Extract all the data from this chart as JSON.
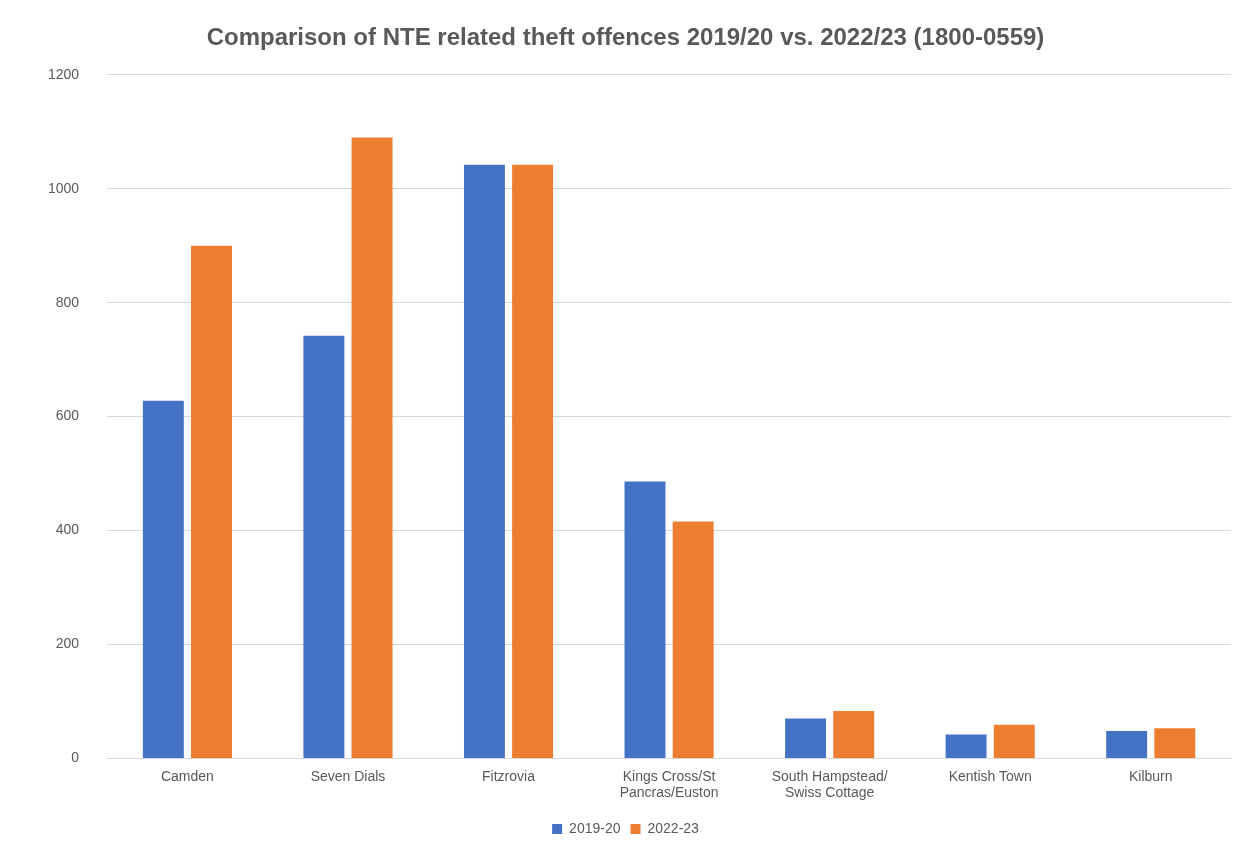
{
  "chart_data": {
    "type": "bar",
    "title": "Comparison of NTE related theft offences 2019/20 vs. 2022/23 (1800-0559)",
    "categories": [
      "Camden",
      "Seven Dials",
      "Fitzrovia",
      "Kings Cross/St Pancras/Euston",
      "South Hampstead/Swiss Cottage",
      "Kentish Town",
      "Kilburn"
    ],
    "series": [
      {
        "name": "2019-20",
        "color": "#4472c4",
        "values": [
          628,
          742,
          1042,
          486,
          70,
          42,
          48
        ]
      },
      {
        "name": "2022-23",
        "color": "#ed7d31",
        "values": [
          900,
          1090,
          1042,
          416,
          83,
          59,
          53
        ]
      }
    ],
    "ylim": [
      0,
      1200
    ],
    "yticks": [
      0,
      200,
      400,
      600,
      800,
      1000,
      1200
    ],
    "grid": "y",
    "legend": "bottom"
  }
}
